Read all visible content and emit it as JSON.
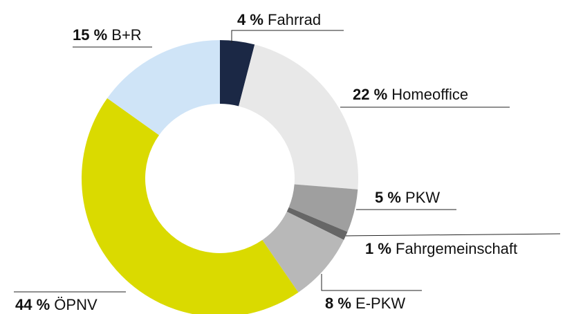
{
  "chart_data": {
    "type": "donut",
    "categories": [
      "Fahrrad",
      "Homeoffice",
      "PKW",
      "Fahrgemeinschaft",
      "E-PKW",
      "ÖPNV",
      "B+R"
    ],
    "values": [
      4,
      22,
      5,
      1,
      8,
      44,
      15
    ],
    "value_labels": [
      "4 %",
      "22 %",
      "5 %",
      "1 %",
      "8 %",
      "44 %",
      "15 %"
    ],
    "colors": [
      "#1b2845",
      "#e8e8e8",
      "#9f9f9f",
      "#666666",
      "#b8b8b8",
      "#dada00",
      "#cfe4f7"
    ]
  }
}
